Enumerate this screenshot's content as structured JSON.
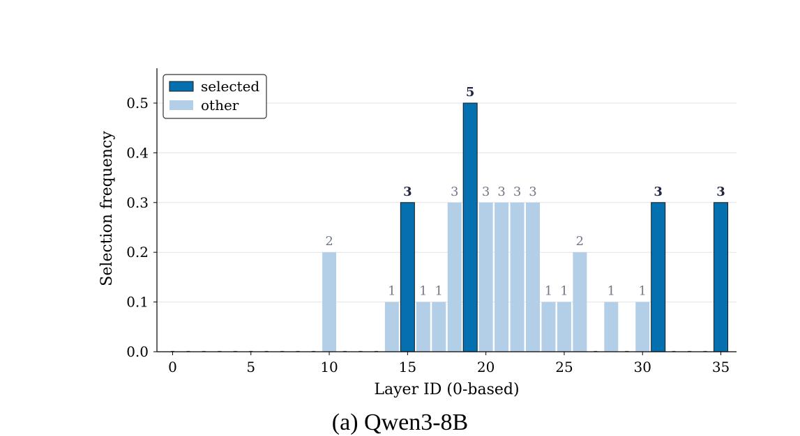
{
  "chart_data": {
    "type": "bar",
    "title": "",
    "xlabel": "Layer ID (0-based)",
    "ylabel": "Selection frequency",
    "xlim": [
      -1,
      36
    ],
    "ylim": [
      0,
      0.57
    ],
    "xticks": [
      0,
      5,
      10,
      15,
      20,
      25,
      30,
      35
    ],
    "yticks": [
      0.0,
      0.1,
      0.2,
      0.3,
      0.4,
      0.5
    ],
    "ytick_labels": [
      "0.0",
      "0.1",
      "0.2",
      "0.3",
      "0.4",
      "0.5"
    ],
    "grid": "horizontal",
    "legend_position": "top-left",
    "colors": {
      "selected": "#0570b0",
      "other": "#b3cfe8",
      "zero_marker": "#555555"
    },
    "series": [
      {
        "name": "selected",
        "x": [
          15,
          19,
          31,
          35
        ],
        "values": [
          0.3,
          0.5,
          0.3,
          0.3
        ],
        "labels": [
          "3",
          "5",
          "3",
          "3"
        ]
      },
      {
        "name": "other",
        "x": [
          10,
          14,
          16,
          17,
          18,
          20,
          21,
          22,
          23,
          24,
          25,
          26,
          28,
          30
        ],
        "values": [
          0.2,
          0.1,
          0.1,
          0.1,
          0.3,
          0.3,
          0.3,
          0.3,
          0.3,
          0.1,
          0.1,
          0.2,
          0.1,
          0.1
        ],
        "labels": [
          "2",
          "1",
          "1",
          "1",
          "3",
          "3",
          "3",
          "3",
          "3",
          "1",
          "1",
          "2",
          "1",
          "1"
        ]
      }
    ],
    "zero_layers": [
      0,
      1,
      2,
      3,
      4,
      5,
      6,
      7,
      8,
      9,
      11,
      12,
      13,
      27,
      29,
      32,
      33,
      34
    ]
  },
  "caption": "(a) Qwen3-8B"
}
